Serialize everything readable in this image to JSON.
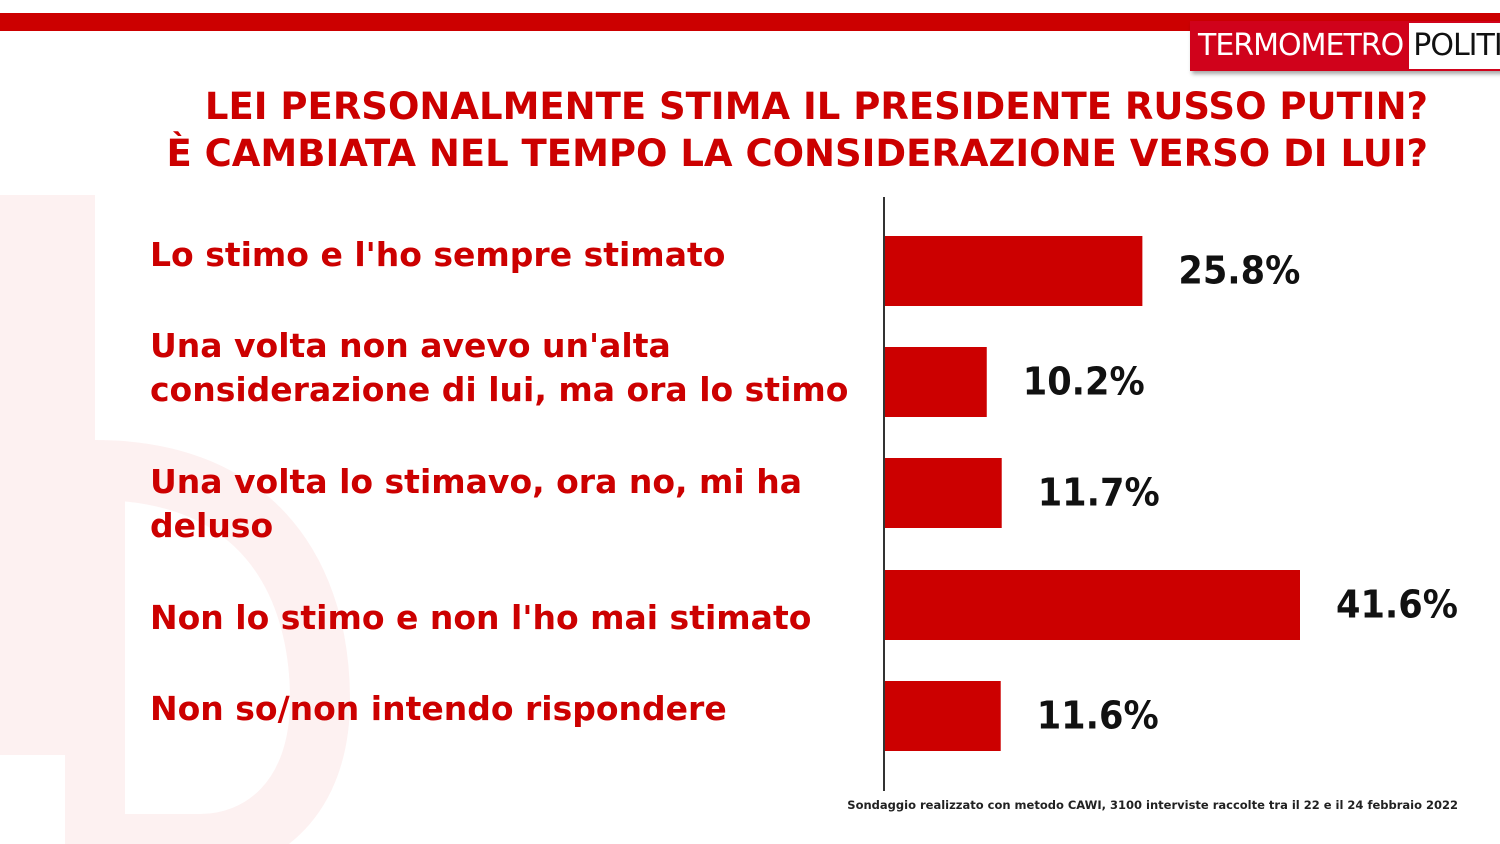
{
  "brand": {
    "logo_part1": "TERMOMETRO",
    "logo_part2": "POLITICO",
    "accent": "#cc0000"
  },
  "chart_data": {
    "type": "bar",
    "orientation": "horizontal",
    "title_lines": [
      "LEI PERSONALMENTE STIMA IL PRESIDENTE RUSSO PUTIN?",
      "È CAMBIATA NEL TEMPO LA CONSIDERAZIONE VERSO DI LUI?"
    ],
    "categories": [
      "Lo stimo e l'ho sempre stimato",
      "Una volta non avevo un'alta considerazione di lui, ma ora lo stimo",
      "Una volta lo stimavo, ora no, mi ha deluso",
      "Non lo stimo e non l'ho mai stimato",
      "Non so/non intendo rispondere"
    ],
    "values": [
      25.8,
      10.2,
      11.7,
      41.6,
      11.6
    ],
    "value_labels": [
      "25.8%",
      "10.2%",
      "11.7%",
      "41.6%",
      "11.6%"
    ],
    "bar_color": "#cc0000",
    "xlim": [
      0,
      41.6
    ],
    "grid": false,
    "legend": "none"
  },
  "footnote": "Sondaggio realizzato con metodo CAWI, 3100 interviste raccolte tra il 22 e il 24 febbraio 2022"
}
